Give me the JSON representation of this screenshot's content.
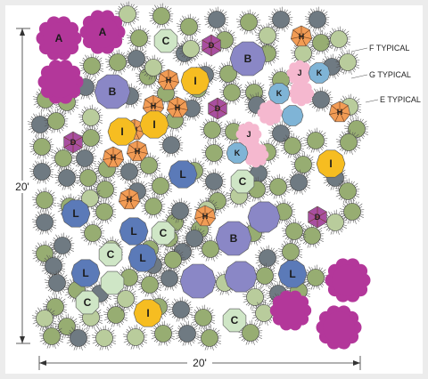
{
  "dimensions": {
    "width_label": "20'",
    "height_label": "20'"
  },
  "legend": [
    {
      "key": "F",
      "label": "F TYPICAL"
    },
    {
      "key": "G",
      "label": "G TYPICAL"
    },
    {
      "key": "E",
      "label": "E TYPICAL"
    }
  ],
  "colors": {
    "A": "#b3379a",
    "B": "#8a87c6",
    "C": "#cfe6c6",
    "D": "#a84fa0",
    "H": "#f29c55",
    "I": "#f6bd21",
    "J": "#f5b8cf",
    "K": "#7fb4d6",
    "L": "#5b7ab8",
    "E": "#6f7a82",
    "F": "#97ad72",
    "G": "#b9cc9c"
  },
  "labeled_plants": [
    "A",
    "A",
    "B",
    "B",
    "B",
    "C",
    "C",
    "C",
    "C",
    "C",
    "C",
    "D",
    "D",
    "D",
    "D",
    "H",
    "H",
    "H",
    "H",
    "H",
    "H",
    "H",
    "H",
    "H",
    "H",
    "I",
    "I",
    "I",
    "I",
    "I",
    "J",
    "J",
    "K",
    "K",
    "K",
    "L",
    "L",
    "L",
    "L",
    "L",
    "L"
  ]
}
